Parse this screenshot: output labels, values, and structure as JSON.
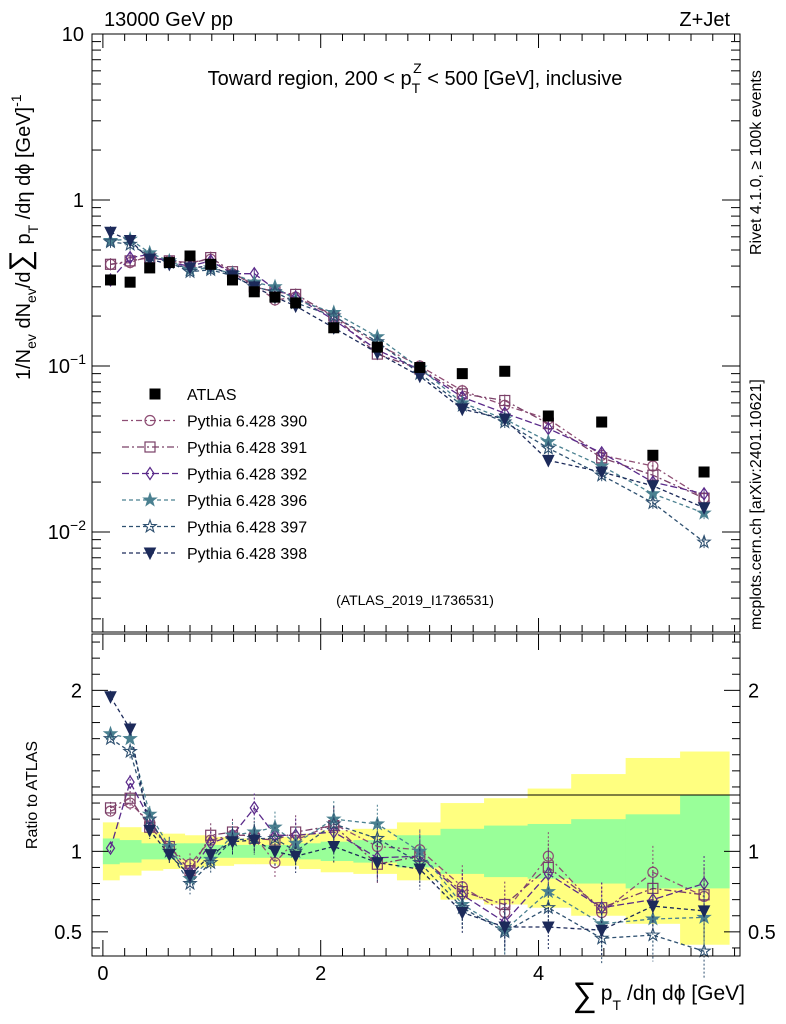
{
  "header": {
    "energy_label": "13000 GeV pp",
    "process_label": "Z+Jet",
    "rivet_label": "Rivet 4.1.0, ≥ 100k events",
    "source_label": "mcplots.cern.ch [arXiv:2401.10621]",
    "analysis_label": "(ATLAS_2019_I1736531)"
  },
  "colors": {
    "band_yellow": "#ffff80",
    "band_green": "#99ff99",
    "ref_marker": "#000000"
  },
  "chart_data": [
    {
      "type": "line",
      "title": "Toward region, 200 < p_T^Z < 500 [GeV], inclusive",
      "title_parts": {
        "pre": "Toward region, 200 < p",
        "sub": "T",
        "sup": "Z",
        "post": " < 500 [GeV], inclusive"
      },
      "ylabel": "1/N_ev dN_ev/d∑ p_T /dη dϕ [GeV]^-1",
      "yscale": "log",
      "ylim": [
        0.0025,
        10
      ],
      "xlim": [
        -0.1,
        5.85
      ],
      "ytick_labels": [
        {
          "value": 10,
          "base": "10",
          "exp": ""
        },
        {
          "value": 1,
          "base": "1",
          "exp": ""
        },
        {
          "value": 0.1,
          "base": "10",
          "exp": "−1"
        },
        {
          "value": 0.01,
          "base": "10",
          "exp": "−2"
        }
      ],
      "x": [
        0.07,
        0.25,
        0.43,
        0.61,
        0.8,
        0.99,
        1.19,
        1.39,
        1.58,
        1.77,
        2.12,
        2.52,
        2.91,
        3.3,
        3.69,
        4.09,
        4.58,
        5.05,
        5.52
      ],
      "reference": {
        "name": "ATLAS",
        "values": [
          0.33,
          0.32,
          0.39,
          0.42,
          0.46,
          0.41,
          0.33,
          0.28,
          0.26,
          0.24,
          0.17,
          0.13,
          0.098,
          0.09,
          0.093,
          0.05,
          0.046,
          0.029,
          0.023
        ]
      },
      "series": [
        {
          "name": "Pythia 6.428 390",
          "color": "#8e4e74",
          "marker": "open-circle",
          "dash": "6,3,2,3",
          "values": [
            0.41,
            0.42,
            0.46,
            0.43,
            0.42,
            0.44,
            0.36,
            0.31,
            0.25,
            0.26,
            0.2,
            0.135,
            0.1,
            0.071,
            0.058,
            0.048,
            0.029,
            0.025,
            0.016
          ]
        },
        {
          "name": "Pythia 6.428 391",
          "color": "#7a4068",
          "marker": "open-square",
          "dash": "7,3,2,3",
          "values": [
            0.41,
            0.43,
            0.45,
            0.43,
            0.41,
            0.45,
            0.37,
            0.3,
            0.28,
            0.27,
            0.2,
            0.118,
            0.096,
            0.068,
            0.062,
            0.045,
            0.028,
            0.022,
            0.016
          ]
        },
        {
          "name": "Pythia 6.428 392",
          "color": "#5a2a8a",
          "marker": "open-diamond",
          "dash": "7,3",
          "values": [
            0.33,
            0.45,
            0.47,
            0.42,
            0.4,
            0.43,
            0.36,
            0.36,
            0.29,
            0.26,
            0.19,
            0.125,
            0.095,
            0.065,
            0.052,
            0.042,
            0.03,
            0.02,
            0.017
          ]
        },
        {
          "name": "Pythia 6.428 396",
          "color": "#4a8090",
          "marker": "filled-star",
          "dash": "4,3",
          "values": [
            0.57,
            0.58,
            0.48,
            0.43,
            0.38,
            0.39,
            0.36,
            0.32,
            0.3,
            0.25,
            0.21,
            0.15,
            0.097,
            0.06,
            0.048,
            0.035,
            0.025,
            0.017,
            0.013
          ]
        },
        {
          "name": "Pythia 6.428 397",
          "color": "#2e5070",
          "marker": "open-star",
          "dash": "4,3",
          "values": [
            0.56,
            0.54,
            0.46,
            0.42,
            0.37,
            0.38,
            0.35,
            0.3,
            0.28,
            0.24,
            0.2,
            0.14,
            0.09,
            0.058,
            0.046,
            0.032,
            0.022,
            0.015,
            0.0087
          ]
        },
        {
          "name": "Pythia 6.428 398",
          "color": "#1c2a5a",
          "marker": "filled-triangle-down",
          "dash": "4,3",
          "values": [
            0.64,
            0.57,
            0.44,
            0.41,
            0.39,
            0.4,
            0.35,
            0.3,
            0.26,
            0.23,
            0.17,
            0.12,
            0.087,
            0.055,
            0.048,
            0.027,
            0.023,
            0.019,
            0.014
          ]
        }
      ]
    },
    {
      "type": "line",
      "title": "",
      "ylabel": "Ratio to ATLAS",
      "xlabel": "∑ p_T /dη dϕ [GeV]",
      "xlabel_parts": {
        "sum": "∑",
        "p": "p",
        "sub": "T",
        "rest": "/dη dϕ [GeV]"
      },
      "ylim": [
        0.35,
        2.35
      ],
      "xlim": [
        -0.1,
        5.85
      ],
      "ytick_labels": [
        {
          "value": 2,
          "label": "2"
        },
        {
          "value": 1,
          "label": "1"
        },
        {
          "value": 0.5,
          "label": "0.5"
        }
      ],
      "xtick_labels": [
        {
          "value": 0,
          "label": "0"
        },
        {
          "value": 2,
          "label": "2"
        },
        {
          "value": 4,
          "label": "4"
        }
      ],
      "band_edges": [
        0,
        0.15,
        0.35,
        0.55,
        0.75,
        1.0,
        1.2,
        1.4,
        1.6,
        1.8,
        2.0,
        2.3,
        2.7,
        3.1,
        3.5,
        3.9,
        4.3,
        4.8,
        5.3,
        5.75
      ],
      "band_yellow_lo": [
        0.82,
        0.85,
        0.88,
        0.89,
        0.9,
        0.91,
        0.92,
        0.92,
        0.91,
        0.89,
        0.87,
        0.86,
        0.82,
        0.7,
        0.67,
        0.65,
        0.6,
        0.55,
        0.42
      ],
      "band_yellow_hi": [
        1.18,
        1.15,
        1.12,
        1.11,
        1.1,
        1.09,
        1.08,
        1.08,
        1.09,
        1.11,
        1.13,
        1.14,
        1.18,
        1.3,
        1.33,
        1.39,
        1.48,
        1.58,
        1.62
      ],
      "band_green_lo": [
        0.92,
        0.93,
        0.95,
        0.95,
        0.95,
        0.96,
        0.96,
        0.96,
        0.96,
        0.95,
        0.94,
        0.93,
        0.9,
        0.86,
        0.84,
        0.83,
        0.8,
        0.77,
        0.77
      ],
      "band_green_hi": [
        1.08,
        1.07,
        1.05,
        1.05,
        1.05,
        1.04,
        1.04,
        1.04,
        1.04,
        1.05,
        1.06,
        1.07,
        1.1,
        1.14,
        1.16,
        1.17,
        1.2,
        1.23,
        1.35
      ],
      "x": [
        0.07,
        0.25,
        0.43,
        0.61,
        0.8,
        0.99,
        1.19,
        1.39,
        1.58,
        1.77,
        2.12,
        2.52,
        2.91,
        3.3,
        3.69,
        4.09,
        4.58,
        5.05,
        5.52
      ],
      "series": [
        {
          "name": "Pythia 6.428 390",
          "values": [
            1.25,
            1.3,
            1.18,
            1.02,
            0.92,
            1.07,
            1.1,
            1.1,
            0.93,
            1.07,
            1.17,
            1.03,
            1.01,
            0.78,
            0.62,
            0.97,
            0.62,
            0.87,
            0.72
          ]
        },
        {
          "name": "Pythia 6.428 391",
          "values": [
            1.27,
            1.33,
            1.15,
            1.03,
            0.88,
            1.1,
            1.12,
            1.08,
            1.07,
            1.12,
            1.16,
            0.92,
            0.97,
            0.75,
            0.67,
            0.9,
            0.65,
            0.77,
            0.73
          ]
        },
        {
          "name": "Pythia 6.428 392",
          "values": [
            1.02,
            1.43,
            1.2,
            1.0,
            0.87,
            1.05,
            1.1,
            1.27,
            1.1,
            1.1,
            1.12,
            0.96,
            0.97,
            0.73,
            0.56,
            0.86,
            0.65,
            0.7,
            0.8
          ]
        },
        {
          "name": "Pythia 6.428 396",
          "values": [
            1.73,
            1.7,
            1.23,
            1.03,
            0.83,
            0.95,
            1.1,
            1.12,
            1.15,
            1.05,
            1.2,
            1.17,
            1.0,
            0.67,
            0.51,
            0.75,
            0.55,
            0.58,
            0.59
          ]
        },
        {
          "name": "Pythia 6.428 397",
          "values": [
            1.7,
            1.62,
            1.2,
            1.0,
            0.8,
            0.93,
            1.07,
            1.08,
            1.08,
            1.0,
            1.17,
            1.08,
            0.93,
            0.65,
            0.5,
            0.65,
            0.46,
            0.48,
            0.38
          ]
        },
        {
          "name": "Pythia 6.428 398",
          "values": [
            1.96,
            1.76,
            1.13,
            0.98,
            0.85,
            0.98,
            1.06,
            1.07,
            1.0,
            0.97,
            1.03,
            0.93,
            0.89,
            0.62,
            0.53,
            0.53,
            0.51,
            0.66,
            0.63
          ]
        }
      ]
    }
  ]
}
